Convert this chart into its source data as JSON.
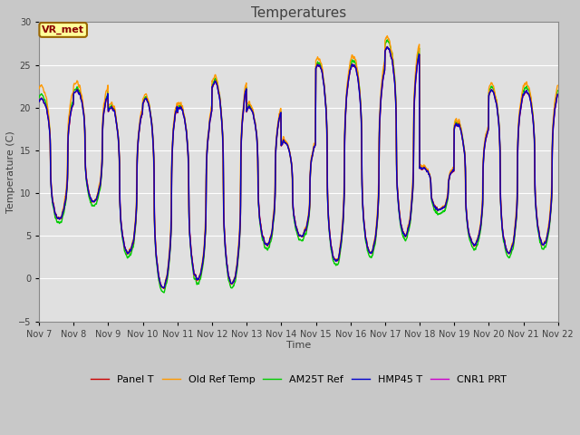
{
  "title": "Temperatures",
  "xlabel": "Time",
  "ylabel": "Temperature (C)",
  "ylim": [
    -5,
    30
  ],
  "annotation_text": "VR_met",
  "fig_bg_color": "#c8c8c8",
  "plot_bg_color": "#e0e0e0",
  "series_colors": [
    "#cc0000",
    "#ff9900",
    "#00cc00",
    "#0000cc",
    "#cc00cc"
  ],
  "series_labels": [
    "Panel T",
    "Old Ref Temp",
    "AM25T Ref",
    "HMP45 T",
    "CNR1 PRT"
  ],
  "series_lw": [
    1.0,
    1.0,
    1.0,
    1.0,
    1.0
  ],
  "grid_color": "#ffffff",
  "tick_color": "#404040",
  "title_fontsize": 11,
  "label_fontsize": 8,
  "tick_fontsize": 7,
  "legend_fontsize": 8,
  "day_peaks": [
    21,
    22,
    20,
    21,
    20,
    23,
    20,
    16,
    25,
    25,
    27,
    13,
    18,
    22,
    22
  ],
  "day_mins": [
    7,
    9,
    3,
    -1,
    0,
    -0.5,
    4,
    5,
    2,
    3,
    5,
    8,
    4,
    3,
    4
  ],
  "orange_extra_peaks": [
    1.5,
    1.0,
    0.5,
    0.5,
    0.5,
    0.7,
    0.5,
    0.3,
    0.8,
    1.0,
    1.2,
    0.3,
    0.5,
    0.8,
    1.0
  ],
  "green_extra_peaks": [
    0.5,
    0.3,
    0.2,
    0.2,
    0.2,
    0.3,
    0.2,
    0.1,
    0.3,
    0.5,
    0.8,
    0.2,
    0.3,
    0.4,
    0.5
  ]
}
